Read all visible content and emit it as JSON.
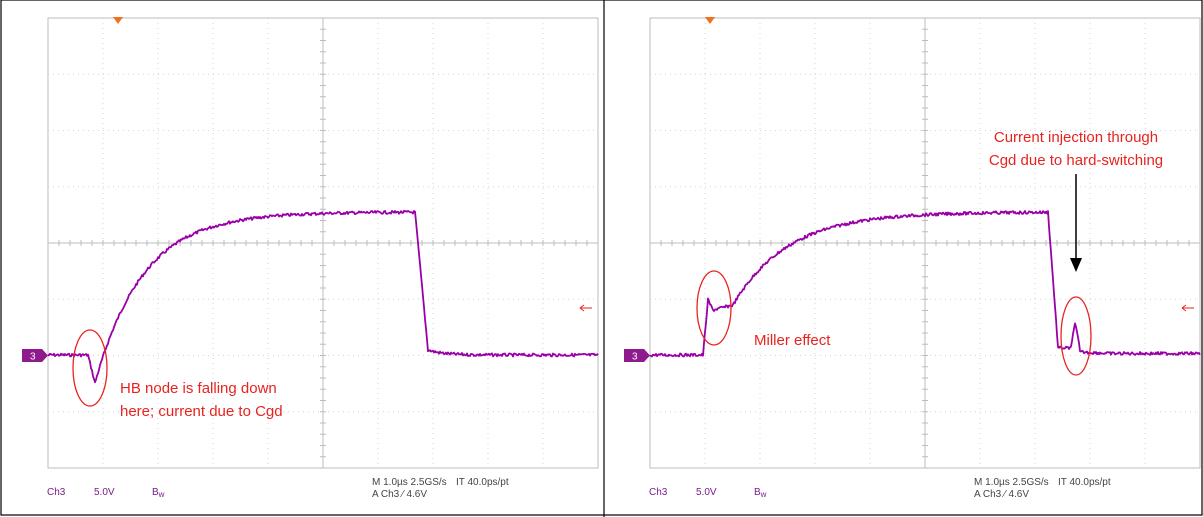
{
  "panels": [
    {
      "channel_marker": "3",
      "scale_channel": "Ch3",
      "scale_volts": "5.0V",
      "bandwidth": "B",
      "bandwidth_sub": "w",
      "timebase": "M 1.0µs 2.5GS/s",
      "interval": "IT 40.0ps/pt",
      "trigger": "A  Ch3  ⁄  4.6V",
      "annotations": [
        "HB node is falling down",
        "here; current due to Cgd"
      ]
    },
    {
      "channel_marker": "3",
      "scale_channel": "Ch3",
      "scale_volts": "5.0V",
      "bandwidth": "B",
      "bandwidth_sub": "w",
      "timebase": "M 1.0µs 2.5GS/s",
      "interval": "IT 40.0ps/pt",
      "trigger": "A  Ch3  ⁄  4.6V",
      "annotations": [
        "Miller effect",
        "Current injection through",
        "Cgd due to hard-switching"
      ]
    }
  ]
}
